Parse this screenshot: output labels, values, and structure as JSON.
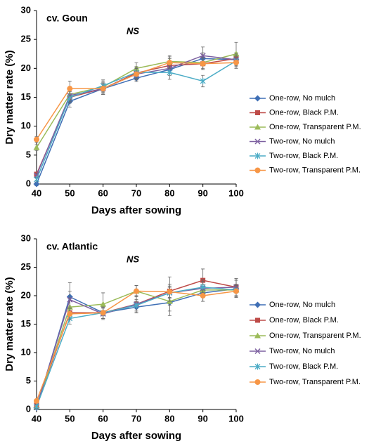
{
  "chart_data": [
    {
      "type": "line",
      "title": "cv. Goun",
      "annotation": "NS",
      "x_label": "Days after sowing",
      "y_label": "Dry matter rate (%)",
      "x": [
        40,
        50,
        60,
        70,
        80,
        90,
        100
      ],
      "xlim": [
        40,
        100
      ],
      "xticks": [
        40,
        50,
        60,
        70,
        80,
        90,
        100
      ],
      "ylim": [
        0,
        30
      ],
      "yticks": [
        0,
        5,
        10,
        15,
        20,
        25,
        30
      ],
      "grid": false,
      "legend": "right",
      "series": [
        {
          "name": "One-row, No mulch",
          "color": "#3f6fb5",
          "marker": "diamond",
          "values": [
            0,
            14.3,
            16.5,
            18.3,
            19.8,
            21.7,
            21.5
          ],
          "errors": [
            0.3,
            1.0,
            0.8,
            0.6,
            1.0,
            1.0,
            1.2
          ]
        },
        {
          "name": "One-row, Black P.M.",
          "color": "#be4b48",
          "marker": "square",
          "values": [
            1.7,
            15,
            16.5,
            19.2,
            20.5,
            20.8,
            21.7
          ],
          "errors": [
            0.3,
            1.0,
            1.0,
            1.0,
            1.2,
            1.0,
            1.0
          ]
        },
        {
          "name": "One-row, Transparent P.M.",
          "color": "#9bbb59",
          "marker": "triangle",
          "values": [
            6.3,
            15.5,
            16.8,
            20,
            21.2,
            21,
            22.5
          ],
          "errors": [
            0.5,
            1.0,
            1.0,
            1.0,
            1.0,
            1.0,
            2.0
          ]
        },
        {
          "name": "Two-row, No mulch",
          "color": "#7d60a0",
          "marker": "x",
          "values": [
            1.5,
            15.3,
            16.5,
            19,
            20,
            22.2,
            21.5
          ],
          "errors": [
            0.3,
            1.0,
            1.0,
            1.0,
            1.2,
            1.5,
            1.0
          ]
        },
        {
          "name": "Two-row, Black P.M.",
          "color": "#4bacc6",
          "marker": "star",
          "values": [
            0.8,
            15,
            17,
            19.3,
            19.3,
            17.8,
            21.3
          ],
          "errors": [
            0.3,
            1.0,
            1.0,
            1.0,
            1.2,
            1.0,
            1.0
          ]
        },
        {
          "name": "Two-row, Transparent P.M.",
          "color": "#f79646",
          "marker": "circle",
          "values": [
            7.7,
            16.5,
            16.5,
            19,
            21,
            20.8,
            21
          ],
          "errors": [
            0.5,
            1.3,
            1.0,
            1.0,
            1.0,
            1.0,
            1.0
          ]
        }
      ]
    },
    {
      "type": "line",
      "title": "cv. Atlantic",
      "annotation": "NS",
      "x_label": "Days after sowing",
      "y_label": "Dry matter rate (%)",
      "x": [
        40,
        50,
        60,
        70,
        80,
        90,
        100
      ],
      "xlim": [
        40,
        100
      ],
      "xticks": [
        40,
        50,
        60,
        70,
        80,
        90,
        100
      ],
      "ylim": [
        0,
        30
      ],
      "yticks": [
        0,
        5,
        10,
        15,
        20,
        25,
        30
      ],
      "grid": false,
      "legend": "right",
      "series": [
        {
          "name": "One-row, No mulch",
          "color": "#3f6fb5",
          "marker": "diamond",
          "values": [
            0.3,
            19.8,
            17,
            18,
            18.8,
            20.5,
            21.2
          ],
          "errors": [
            0.3,
            2.5,
            1.0,
            1.0,
            1.5,
            1.5,
            1.5
          ]
        },
        {
          "name": "One-row, Black P.M.",
          "color": "#be4b48",
          "marker": "square",
          "values": [
            0.8,
            17,
            17,
            18.5,
            20.8,
            22.7,
            21.5
          ],
          "errors": [
            0.3,
            1.0,
            1.0,
            1.5,
            2.5,
            2.0,
            1.5
          ]
        },
        {
          "name": "One-row, Transparent P.M.",
          "color": "#9bbb59",
          "marker": "triangle",
          "values": [
            0.5,
            18,
            18.5,
            20.8,
            19,
            21,
            21
          ],
          "errors": [
            0.3,
            1.5,
            2.0,
            1.0,
            2.5,
            1.0,
            1.0
          ]
        },
        {
          "name": "Two-row, No mulch",
          "color": "#7d60a0",
          "marker": "x",
          "values": [
            0.5,
            19.3,
            16.8,
            18.5,
            20.5,
            21.3,
            21.5
          ],
          "errors": [
            0.3,
            1.5,
            1.0,
            1.5,
            1.5,
            1.5,
            1.5
          ]
        },
        {
          "name": "Two-row, Black P.M.",
          "color": "#4bacc6",
          "marker": "star",
          "values": [
            0.5,
            16,
            17,
            18.3,
            20.5,
            21.5,
            21
          ],
          "errors": [
            0.3,
            1.0,
            1.0,
            1.0,
            1.0,
            1.0,
            1.0
          ]
        },
        {
          "name": "Two-row, Transparent P.M.",
          "color": "#f79646",
          "marker": "circle",
          "values": [
            1.5,
            16.8,
            17,
            20.8,
            20.7,
            20,
            20.8
          ],
          "errors": [
            0.3,
            1.0,
            1.0,
            1.0,
            1.0,
            1.0,
            1.0
          ]
        }
      ]
    }
  ]
}
